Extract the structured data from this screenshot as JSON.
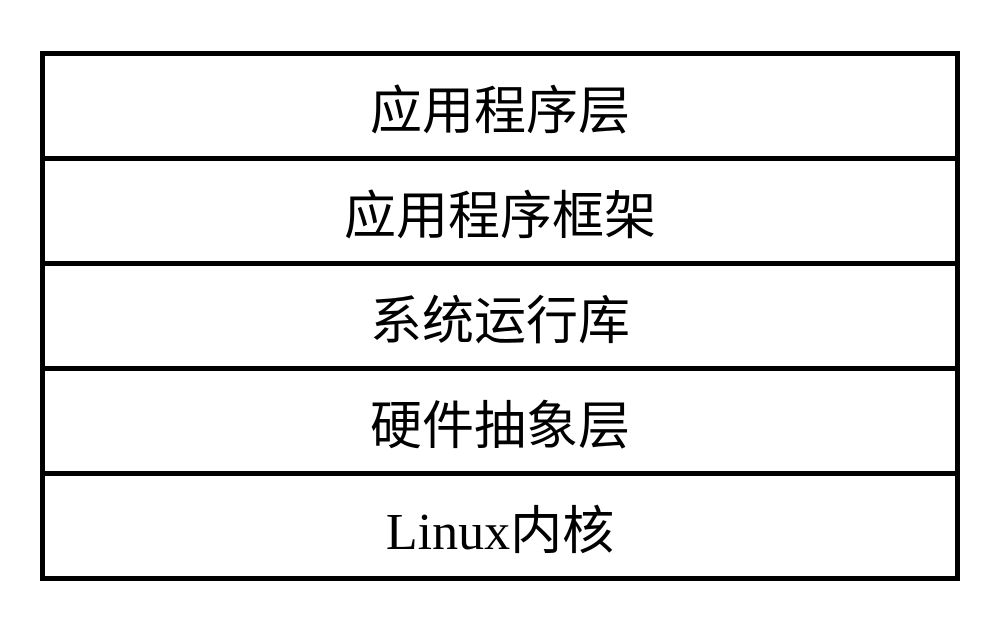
{
  "diagram": {
    "type": "layered-stack",
    "background_color": "#ffffff",
    "border_color": "#000000",
    "border_width": 5,
    "text_color": "#000000",
    "font_size": 52,
    "font_family": "SimSun, 宋体, serif",
    "layer_height": 110,
    "container_width": 920,
    "layers": [
      {
        "label": "应用程序层"
      },
      {
        "label": "应用程序框架"
      },
      {
        "label": "系统运行库"
      },
      {
        "label": "硬件抽象层"
      },
      {
        "label": "Linux内核"
      }
    ]
  }
}
